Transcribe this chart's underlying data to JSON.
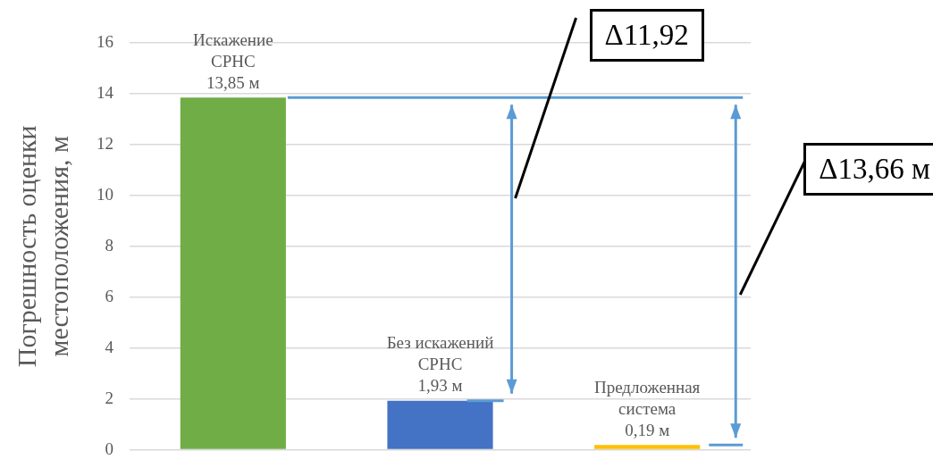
{
  "chart_data": {
    "type": "bar",
    "ylabel": "Погрешность оценки\nместоположения, м",
    "categories": [
      null,
      null,
      null
    ],
    "values": [
      13.85,
      1.93,
      0.19
    ],
    "colors": [
      "#70ad47",
      "#4472c4",
      "#ffc000"
    ],
    "value_labels": [
      "Искажение\nСРНС\n13,85 м",
      "Без искажений\nСРНС\n1,93 м",
      "Предложенная\nсистема\n0,19 м"
    ],
    "ylim": [
      0,
      16
    ],
    "yticks": [
      0,
      2,
      4,
      6,
      8,
      10,
      12,
      14,
      16
    ],
    "grid": "y",
    "ref_lines": [
      {
        "axis": "y",
        "value": 13.85,
        "color": "#5b9bd5"
      }
    ],
    "annotations": [
      "Δ11,92",
      "Δ13,66 м"
    ]
  }
}
